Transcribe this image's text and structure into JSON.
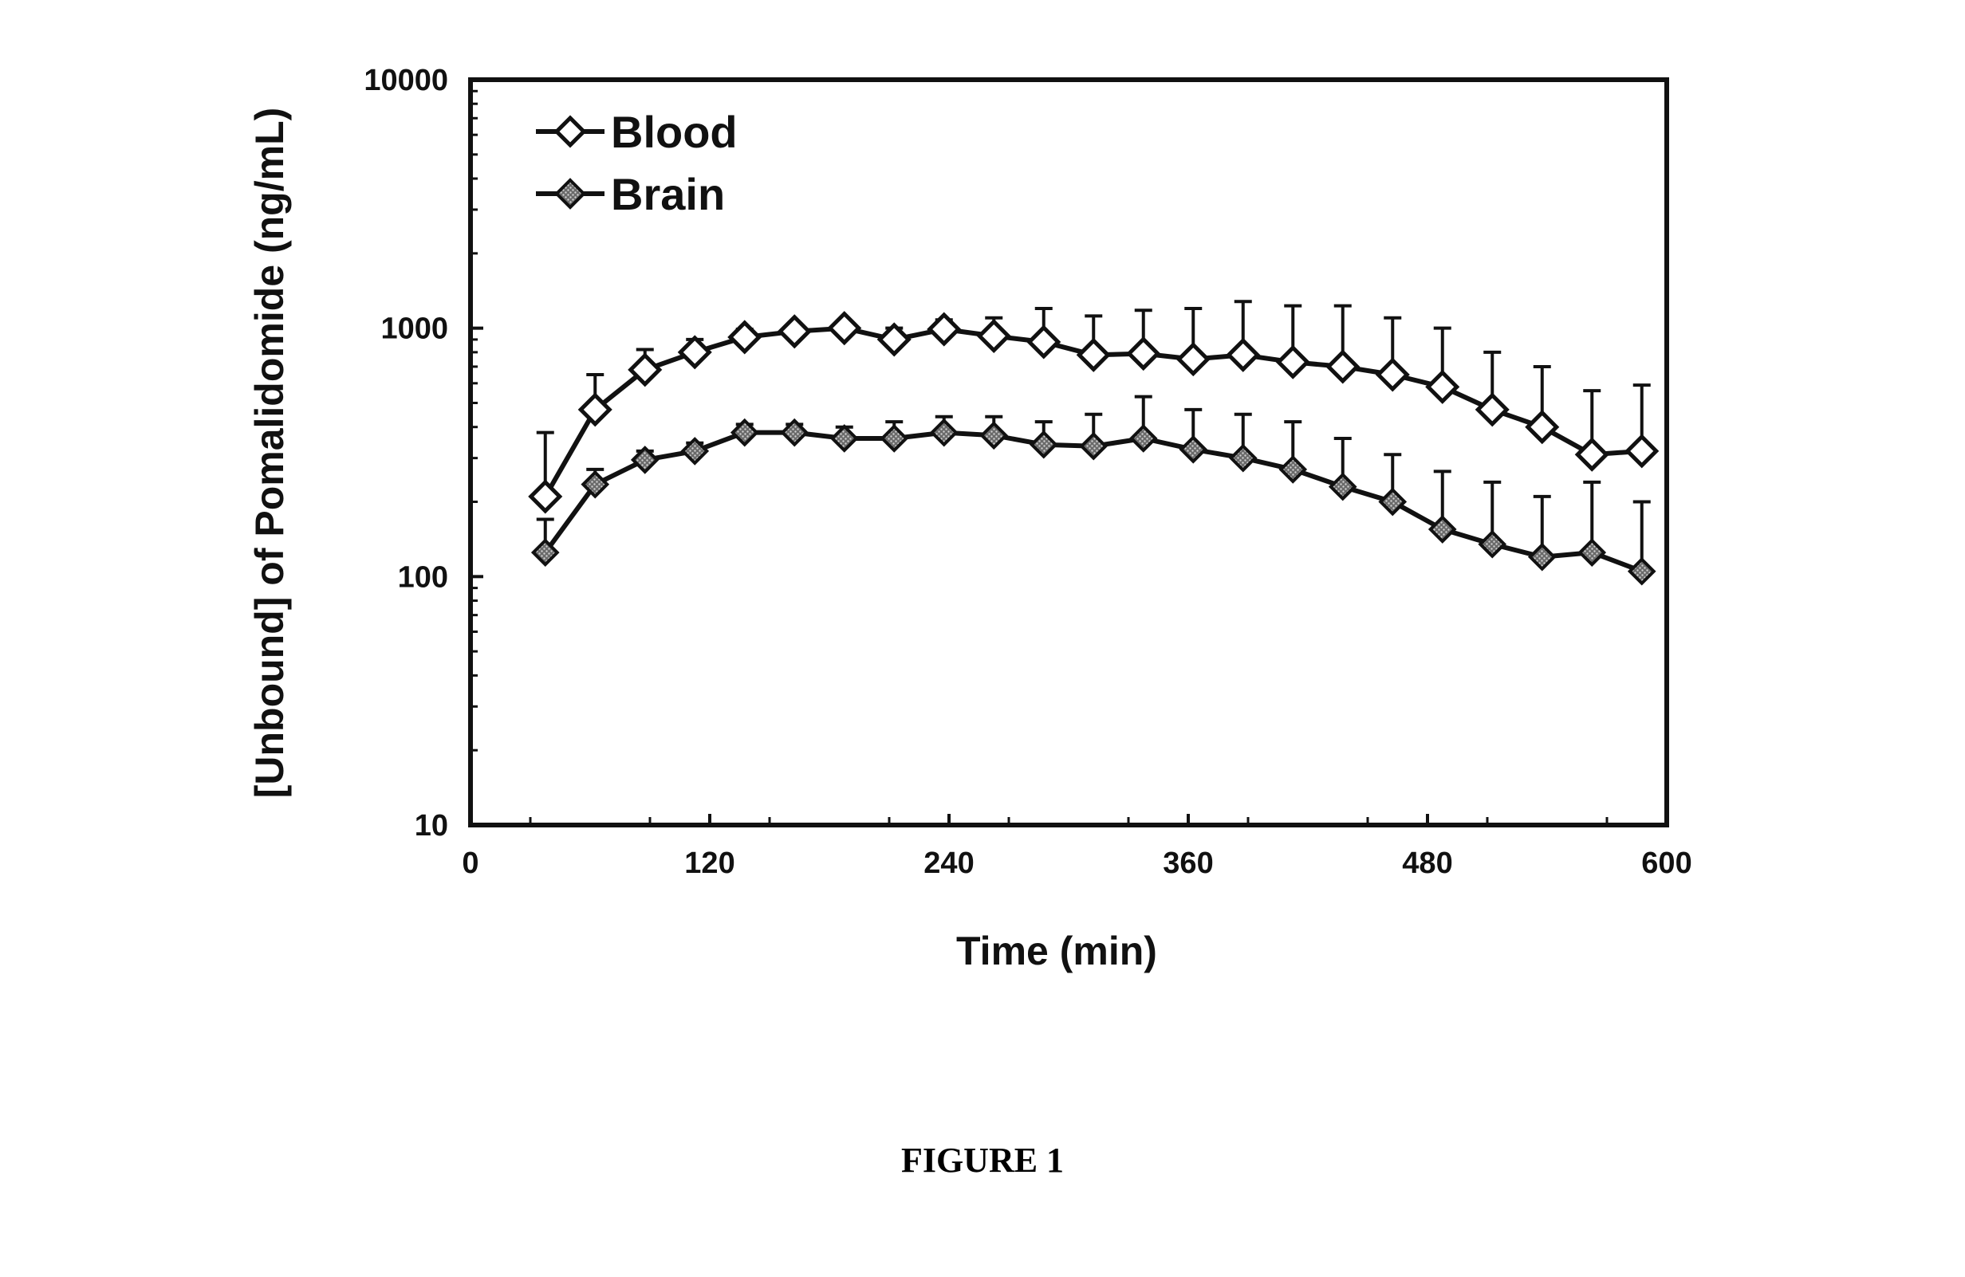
{
  "caption": "FIGURE 1",
  "chart_data": {
    "type": "line",
    "xlabel": "Time (min)",
    "ylabel": "[Unbound] of Pomalidomide (ng/mL)",
    "xlim": [
      0,
      600
    ],
    "ylim": [
      10,
      10000
    ],
    "yscale": "log",
    "xticks": [
      "0",
      "120",
      "240",
      "360",
      "480",
      "600"
    ],
    "yticks": [
      "10",
      "100",
      "1000",
      "10000"
    ],
    "legend_position": "top-left",
    "x": [
      37.5,
      62.5,
      87.5,
      112.5,
      137.5,
      162.5,
      187.5,
      212.5,
      237.5,
      262.5,
      287.5,
      312.5,
      337.5,
      362.5,
      387.5,
      412.5,
      437.5,
      462.5,
      487.5,
      512.5,
      537.5,
      562.5,
      587.5
    ],
    "series": [
      {
        "name": "Blood",
        "marker": "open-diamond",
        "values": [
          210,
          470,
          680,
          800,
          920,
          970,
          1000,
          900,
          990,
          930,
          880,
          780,
          790,
          750,
          780,
          730,
          700,
          650,
          580,
          470,
          400,
          310,
          320
        ],
        "error_upper": [
          380,
          650,
          820,
          900,
          990,
          1000,
          1050,
          1000,
          1080,
          1100,
          1200,
          1120,
          1180,
          1200,
          1280,
          1230,
          1230,
          1100,
          1000,
          800,
          700,
          560,
          590
        ]
      },
      {
        "name": "Brain",
        "marker": "filled-diamond",
        "values": [
          125,
          235,
          295,
          320,
          380,
          380,
          360,
          360,
          380,
          370,
          340,
          335,
          360,
          325,
          300,
          270,
          230,
          200,
          155,
          135,
          120,
          125,
          105
        ],
        "error_upper": [
          170,
          270,
          320,
          345,
          410,
          410,
          400,
          420,
          440,
          440,
          420,
          450,
          530,
          470,
          450,
          420,
          360,
          310,
          265,
          240,
          210,
          240,
          200
        ]
      }
    ]
  }
}
